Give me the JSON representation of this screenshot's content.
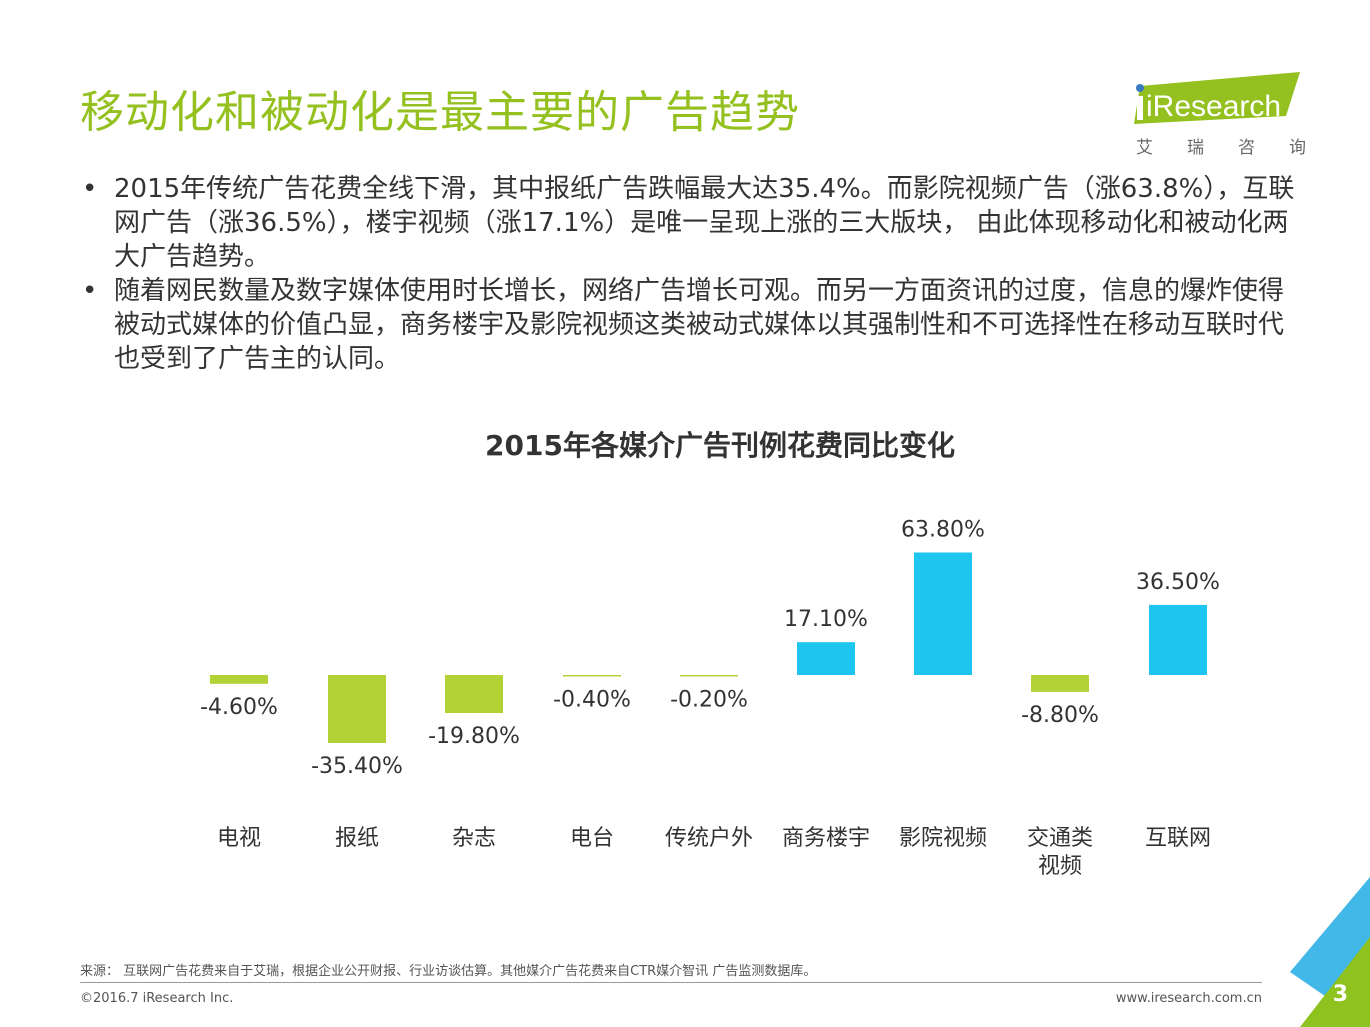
{
  "header": {
    "title": "移动化和被动化是最主要的广告趋势",
    "logo_text": "iResearch",
    "logo_sub": [
      "艾",
      "瑞",
      "咨",
      "询"
    ]
  },
  "bullets": [
    "2015年传统广告花费全线下滑，其中报纸广告跌幅最大达35.4%。而影院视频广告（涨63.8%），互联网广告（涨36.5%），楼宇视频（涨17.1%）是唯一呈现上涨的三大版块， 由此体现移动化和被动化两大广告趋势。",
    "随着网民数量及数字媒体使用时长增长，网络广告增长可观。而另一方面资讯的过度，信息的爆炸使得被动式媒体的价值凸显，商务楼宇及影院视频这类被动式媒体以其强制性和不可选择性在移动互联时代也受到了广告主的认同。"
  ],
  "chart_data": {
    "type": "bar",
    "title": "2015年各媒介广告刊例花费同比变化",
    "categories": [
      "电视",
      "报纸",
      "杂志",
      "电台",
      "传统户外",
      "商务楼宇",
      "影院视频",
      "交通类视频",
      "互联网"
    ],
    "category_lines": [
      [
        "电视"
      ],
      [
        "报纸"
      ],
      [
        "杂志"
      ],
      [
        "电台"
      ],
      [
        "传统户外"
      ],
      [
        "商务楼宇"
      ],
      [
        "影院视频"
      ],
      [
        "交通类",
        "视频"
      ],
      [
        "互联网"
      ]
    ],
    "values": [
      -4.6,
      -35.4,
      -19.8,
      -0.4,
      -0.2,
      17.1,
      63.8,
      -8.8,
      36.5
    ],
    "labels": [
      "-4.60%",
      "-35.40%",
      "-19.80%",
      "-0.40%",
      "-0.20%",
      "17.10%",
      "63.80%",
      "-8.80%",
      "36.50%"
    ],
    "unit": "%",
    "xlabel": "",
    "ylabel": "",
    "positive_color": "#1ec5ef",
    "negative_color": "#b2d235",
    "grid": false,
    "legend": "none"
  },
  "footer": {
    "source": "来源： 互联网广告花费来自于艾瑞，根据企业公开财报、行业访谈估算。其他媒介广告花费来自CTR媒介智讯 广告监测数据库。",
    "copyright": "©2016.7 iResearch Inc.",
    "url": "www.iresearch.com.cn",
    "page_number": "3"
  },
  "colors": {
    "accent": "#94c11f",
    "corner_blue": "#41b8e8",
    "corner_green": "#8dc21f"
  }
}
